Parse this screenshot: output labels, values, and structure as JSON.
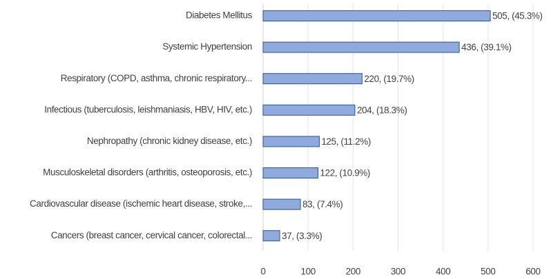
{
  "chart_data": {
    "type": "bar",
    "orientation": "horizontal",
    "categories": [
      "Diabetes Mellitus",
      "Systemic Hypertension",
      "Respiratory (COPD, asthma, chronic respiratory...",
      "Infectious (tuberculosis, leishmaniasis, HBV, HIV, etc.)",
      "Nephropathy (chronic kidney disease, etc.)",
      "Musculoskeletal disorders (arthritis, osteoporosis, etc.)",
      "Cardiovascular disease (ischemic heart disease, stroke,...",
      "Cancers (breast cancer, cervical cancer, colorectal..."
    ],
    "values": [
      505,
      436,
      220,
      204,
      125,
      122,
      83,
      37
    ],
    "value_labels": [
      "505, (45.3%)",
      "436, (39.1%)",
      "220, (19.7%)",
      "204, (18.3%)",
      "125, (11.2%)",
      "122, (10.9%)",
      "83, (7.4%)",
      "37, (3.3%)"
    ],
    "color": "#8faadc",
    "edge_color": "#2f528f",
    "xlim": [
      0,
      600
    ],
    "xticks": [
      0,
      100,
      200,
      300,
      400,
      500,
      600
    ],
    "grid": true
  }
}
